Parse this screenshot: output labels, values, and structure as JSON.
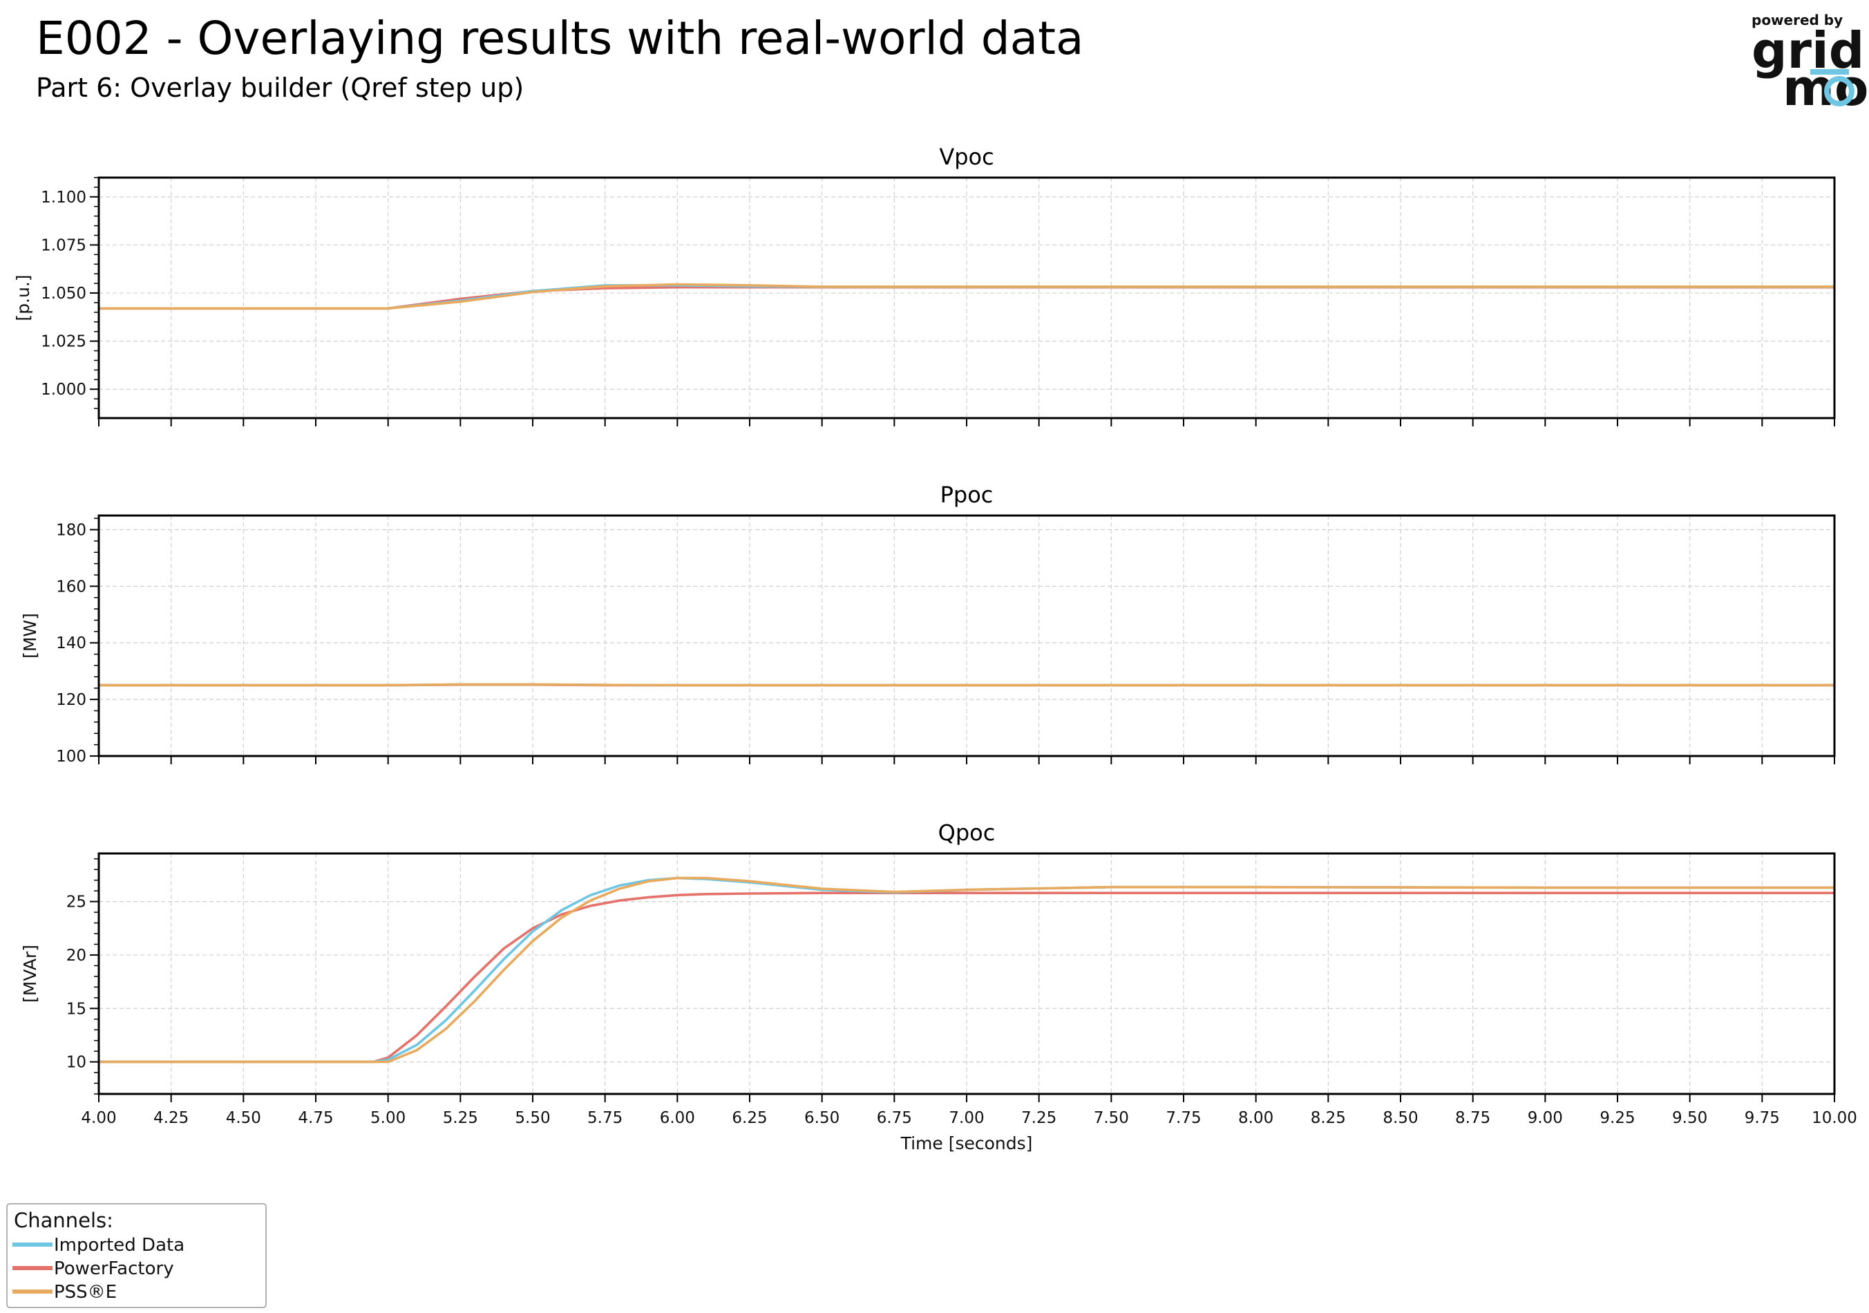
{
  "header": {
    "title": "E002 - Overlaying results with real-world data",
    "subtitle": "Part 6: Overlay builder (Qref step up)"
  },
  "logo": {
    "powered_by": "powered by",
    "word_top": "grid",
    "word_bottom": "mo"
  },
  "legend": {
    "title": "Channels:",
    "items": [
      {
        "label": "Imported Data",
        "color": "#6ec6e3"
      },
      {
        "label": "PowerFactory",
        "color": "#e5716b"
      },
      {
        "label": "PSS®E",
        "color": "#e8aa5e"
      }
    ]
  },
  "chart_data": [
    {
      "type": "line",
      "title": "Vpoc",
      "ylabel": "[p.u.]",
      "xlim": [
        4.0,
        10.0
      ],
      "ylim": [
        0.985,
        1.11
      ],
      "yticks": [
        "1.000",
        "1.025",
        "1.050",
        "1.075",
        "1.100"
      ],
      "x": [
        4.0,
        4.9,
        5.0,
        5.25,
        5.5,
        5.75,
        6.0,
        6.25,
        6.5,
        7.0,
        8.0,
        9.0,
        10.0
      ],
      "series": [
        {
          "name": "Imported Data",
          "values": [
            1.042,
            1.042,
            1.042,
            1.046,
            1.051,
            1.054,
            1.054,
            1.0535,
            1.0532,
            1.0532,
            1.0532,
            1.0532,
            1.0532
          ]
        },
        {
          "name": "PowerFactory",
          "values": [
            1.042,
            1.042,
            1.042,
            1.047,
            1.051,
            1.0525,
            1.053,
            1.053,
            1.053,
            1.053,
            1.053,
            1.053,
            1.053
          ]
        },
        {
          "name": "PSS®E",
          "values": [
            1.042,
            1.042,
            1.042,
            1.0455,
            1.0505,
            1.0535,
            1.0545,
            1.054,
            1.0533,
            1.0533,
            1.0533,
            1.0533,
            1.0533
          ]
        }
      ]
    },
    {
      "type": "line",
      "title": "Ppoc",
      "ylabel": "[MW]",
      "xlim": [
        4.0,
        10.0
      ],
      "ylim": [
        100,
        185
      ],
      "yticks": [
        "100",
        "120",
        "140",
        "160",
        "180"
      ],
      "x": [
        4.0,
        5.0,
        5.25,
        5.5,
        5.75,
        6.0,
        7.0,
        8.0,
        9.0,
        10.0
      ],
      "series": [
        {
          "name": "Imported Data",
          "values": [
            125.0,
            125.0,
            125.3,
            125.3,
            125.1,
            125.0,
            125.0,
            125.0,
            125.0,
            125.0
          ]
        },
        {
          "name": "PowerFactory",
          "values": [
            125.0,
            125.0,
            125.2,
            125.2,
            125.0,
            125.0,
            125.0,
            125.0,
            125.0,
            125.0
          ]
        },
        {
          "name": "PSS®E",
          "values": [
            125.0,
            125.0,
            125.3,
            125.3,
            125.1,
            125.0,
            125.0,
            125.0,
            125.0,
            125.0
          ]
        }
      ]
    },
    {
      "type": "line",
      "title": "Qpoc",
      "ylabel": "[MVAr]",
      "xlabel": "Time [seconds]",
      "xlim": [
        4.0,
        10.0
      ],
      "ylim": [
        7,
        29.5
      ],
      "yticks": [
        "10",
        "15",
        "20",
        "25"
      ],
      "xticks": [
        "4.00",
        "4.25",
        "4.50",
        "4.75",
        "5.00",
        "5.25",
        "5.50",
        "5.75",
        "6.00",
        "6.25",
        "6.50",
        "6.75",
        "7.00",
        "7.25",
        "7.50",
        "7.75",
        "8.00",
        "8.25",
        "8.50",
        "8.75",
        "9.00",
        "9.25",
        "9.50",
        "9.75",
        "10.00"
      ],
      "x": [
        4.0,
        4.95,
        5.0,
        5.1,
        5.2,
        5.3,
        5.4,
        5.5,
        5.6,
        5.7,
        5.8,
        5.9,
        6.0,
        6.1,
        6.25,
        6.5,
        6.75,
        7.0,
        7.5,
        8.0,
        9.0,
        10.0
      ],
      "series": [
        {
          "name": "Imported Data",
          "values": [
            10.0,
            10.0,
            10.2,
            11.6,
            13.9,
            16.7,
            19.6,
            22.2,
            24.2,
            25.6,
            26.5,
            27.0,
            27.2,
            27.1,
            26.8,
            26.1,
            25.85,
            26.1,
            26.35,
            26.35,
            26.3,
            26.3
          ]
        },
        {
          "name": "PowerFactory",
          "values": [
            10.0,
            10.0,
            10.4,
            12.5,
            15.2,
            18.0,
            20.6,
            22.5,
            23.8,
            24.6,
            25.1,
            25.4,
            25.6,
            25.7,
            25.75,
            25.8,
            25.8,
            25.8,
            25.8,
            25.8,
            25.8,
            25.8
          ]
        },
        {
          "name": "PSS®E",
          "values": [
            10.0,
            10.0,
            10.0,
            11.1,
            13.1,
            15.7,
            18.6,
            21.3,
            23.5,
            25.1,
            26.2,
            26.9,
            27.2,
            27.2,
            26.9,
            26.2,
            25.9,
            26.1,
            26.35,
            26.35,
            26.3,
            26.3
          ]
        }
      ]
    }
  ]
}
